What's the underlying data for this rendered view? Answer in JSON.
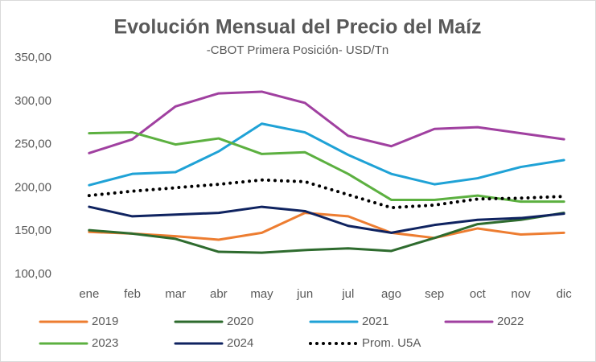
{
  "chart_data": {
    "type": "line",
    "title": "Evolución Mensual del Precio del Maíz",
    "subtitle": "-CBOT Primera Posición- USD/Tn",
    "categories": [
      "ene",
      "feb",
      "mar",
      "abr",
      "may",
      "jun",
      "jul",
      "ago",
      "sep",
      "oct",
      "nov",
      "dic"
    ],
    "ylim": [
      100,
      350
    ],
    "yticks": [
      {
        "value": 100,
        "label": "100,00"
      },
      {
        "value": 150,
        "label": "150,00"
      },
      {
        "value": 200,
        "label": "200,00"
      },
      {
        "value": 250,
        "label": "250,00"
      },
      {
        "value": 300,
        "label": "300,00"
      },
      {
        "value": 350,
        "label": "350,00"
      }
    ],
    "grid": false,
    "legend": "bottom",
    "series": [
      {
        "name": "2019",
        "color": "#ed7d31",
        "values": [
          149,
          147,
          144,
          140,
          148,
          171,
          167,
          148,
          142,
          153,
          146,
          148
        ]
      },
      {
        "name": "2020",
        "color": "#2e6b2e",
        "values": [
          151,
          147,
          141,
          126,
          125,
          128,
          130,
          127,
          142,
          158,
          163,
          171
        ]
      },
      {
        "name": "2021",
        "color": "#1fa2d6",
        "values": [
          203,
          216,
          218,
          242,
          274,
          264,
          238,
          216,
          204,
          211,
          224,
          232
        ]
      },
      {
        "name": "2022",
        "color": "#a040a0",
        "values": [
          240,
          256,
          294,
          309,
          311,
          298,
          260,
          248,
          268,
          270,
          263,
          256
        ]
      },
      {
        "name": "2023",
        "color": "#5cb040",
        "values": [
          263,
          264,
          250,
          257,
          239,
          241,
          216,
          186,
          186,
          191,
          184,
          184
        ]
      },
      {
        "name": "2024",
        "color": "#0f2360",
        "values": [
          178,
          167,
          169,
          171,
          178,
          173,
          156,
          148,
          157,
          163,
          165,
          170
        ]
      },
      {
        "name": "Prom. U5A",
        "color": "#000000",
        "dash": "dot",
        "values": [
          191,
          196,
          200,
          204,
          209,
          207,
          192,
          177,
          180,
          187,
          188,
          190
        ]
      }
    ]
  }
}
